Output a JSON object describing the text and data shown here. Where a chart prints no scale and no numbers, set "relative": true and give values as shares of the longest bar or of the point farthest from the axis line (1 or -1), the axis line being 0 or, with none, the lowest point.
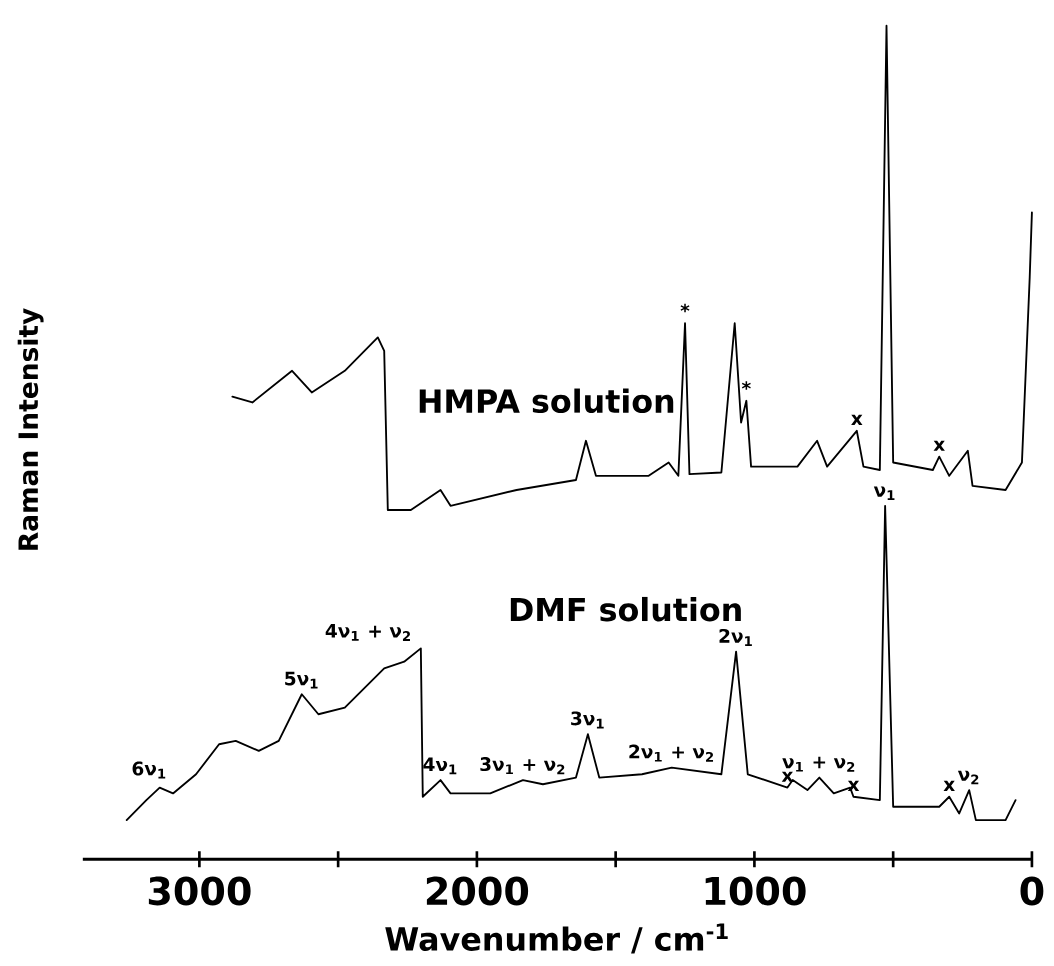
{
  "chart_data": {
    "type": "line",
    "relative": true,
    "xlabel": "Wavenumber / cm$^{-1}$",
    "ylabel": "Raman Intensity",
    "xlim": [
      3420,
      0
    ],
    "xticks": [
      3000,
      {
        "value": 2500,
        "label": null
      },
      2000,
      {
        "value": 1500,
        "label": null
      },
      1000,
      {
        "value": 500,
        "label": null
      },
      0
    ],
    "line_style": "solid",
    "series": [
      {
        "name": "HMPA solution",
        "color": "#000000",
        "x": [
          2881,
          2809,
          2666,
          2595,
          2476,
          2357,
          2334,
          2321,
          2238,
          2131,
          2095,
          1857,
          1643,
          1607,
          1571,
          1381,
          1309,
          1274,
          1250,
          1234,
          1119,
          1071,
          1048,
          1029,
          1012,
          845,
          774,
          738,
          631,
          607,
          548,
          524,
          500,
          357,
          334,
          298,
          231,
          214,
          95,
          36,
          8,
          0
        ],
        "values": [
          0.555,
          0.548,
          0.586,
          0.56,
          0.586,
          0.626,
          0.61,
          0.419,
          0.419,
          0.443,
          0.424,
          0.443,
          0.455,
          0.502,
          0.46,
          0.46,
          0.476,
          0.46,
          0.643,
          0.462,
          0.464,
          0.643,
          0.524,
          0.55,
          0.471,
          0.471,
          0.502,
          0.471,
          0.514,
          0.471,
          0.467,
          1.0,
          0.476,
          0.467,
          0.483,
          0.46,
          0.49,
          0.448,
          0.443,
          0.476,
          0.698,
          0.776
        ]
      },
      {
        "name": "DMF solution",
        "color": "#000000",
        "x": [
          3262,
          3191,
          3143,
          3095,
          3012,
          2929,
          2869,
          2786,
          2714,
          2631,
          2571,
          2476,
          2334,
          2262,
          2202,
          2195,
          2131,
          2095,
          1952,
          1834,
          1762,
          1643,
          1600,
          1559,
          1405,
          1298,
          1119,
          1066,
          1024,
          881,
          862,
          809,
          766,
          714,
          655,
          643,
          548,
          529,
          500,
          334,
          298,
          262,
          226,
          202,
          95,
          59
        ],
        "values": [
          0.047,
          0.071,
          0.086,
          0.079,
          0.102,
          0.138,
          0.142,
          0.13,
          0.142,
          0.198,
          0.174,
          0.182,
          0.229,
          0.237,
          0.253,
          0.075,
          0.095,
          0.079,
          0.079,
          0.095,
          0.09,
          0.098,
          0.15,
          0.098,
          0.102,
          0.11,
          0.102,
          0.249,
          0.102,
          0.086,
          0.095,
          0.083,
          0.098,
          0.079,
          0.086,
          0.075,
          0.071,
          0.424,
          0.063,
          0.063,
          0.075,
          0.055,
          0.083,
          0.047,
          0.047,
          0.071
        ]
      }
    ],
    "annotations": [
      {
        "text": "*",
        "x": 1250,
        "y": 0.643
      },
      {
        "text": "*",
        "x": 1029,
        "y": 0.55
      },
      {
        "text": "x",
        "x": 631,
        "y": 0.514
      },
      {
        "text": "x",
        "x": 334,
        "y": 0.483
      },
      {
        "text": "6ν$_{1}$",
        "x": 3180,
        "y": 0.09
      },
      {
        "text": "5ν$_{1}$",
        "x": 2631,
        "y": 0.198
      },
      "4ν$_{1}$ + ν$_{2}$",
      {
        "text": "4ν$_{1}$",
        "x": 2131,
        "y": 0.095
      },
      {
        "text": "3ν$_{1}$ + ν$_{2}$",
        "x": 1834,
        "y": 0.095
      },
      {
        "text": "3ν$_{1}$",
        "x": 1600,
        "y": 0.15
      },
      {
        "text": "2ν$_{1}$ + ν$_{2}$",
        "x": 1298,
        "y": 0.11
      },
      {
        "text": "2ν$_{1}$",
        "x": 1066,
        "y": 0.249
      },
      {
        "text": "x",
        "x": 881,
        "y": 0.086
      },
      {
        "text": "ν$_{1}$ + ν$_{2}$",
        "x": 766,
        "y": 0.098
      },
      {
        "text": "x",
        "x": 643,
        "y": 0.075
      },
      {
        "text": "ν$_{1}$",
        "x": 529,
        "y": 0.424
      },
      {
        "text": "x",
        "x": 298,
        "y": 0.075
      },
      {
        "text": "ν$_{2}$",
        "x": 226,
        "y": 0.083
      }
    ]
  }
}
